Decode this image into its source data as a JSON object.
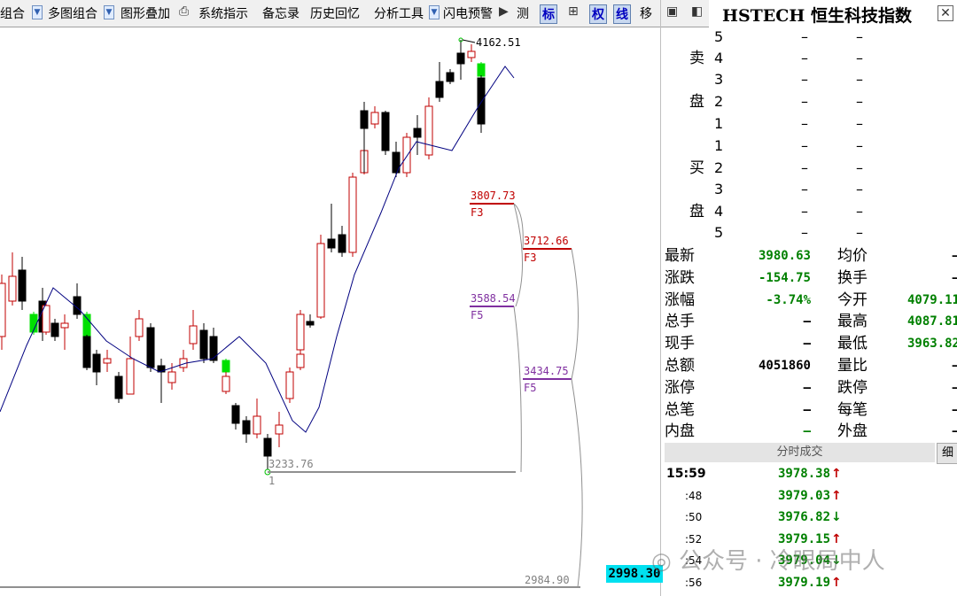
{
  "toolbar": {
    "items": [
      "组合",
      "多图组合",
      "图形叠加",
      "系统指示",
      "备忘录",
      "历史回忆",
      "分析工具",
      "闪电预警",
      "测",
      "标",
      "权",
      "线",
      "移"
    ]
  },
  "chart": {
    "high_label": "4162.51",
    "fib": [
      {
        "value": "3807.73",
        "tag": "F3"
      },
      {
        "value": "3712.66",
        "tag": "F3"
      },
      {
        "value": "3588.54",
        "tag": "F5"
      },
      {
        "value": "3434.75",
        "tag": "F5"
      },
      {
        "value": "3233.76",
        "tag": "1"
      }
    ],
    "low_label": "2984.90",
    "price_tag": "2998.30"
  },
  "quote": {
    "title": "HSTECH 恒生科技指数",
    "side_labels": [
      "卖",
      "盘",
      "买",
      "盘"
    ],
    "book": [
      {
        "level": "5",
        "price": "–",
        "volume": "–"
      },
      {
        "level": "4",
        "price": "–",
        "volume": "–"
      },
      {
        "level": "3",
        "price": "–",
        "volume": "–"
      },
      {
        "level": "2",
        "price": "–",
        "volume": "–"
      },
      {
        "level": "1",
        "price": "–",
        "volume": "–"
      },
      {
        "level": "1",
        "price": "–",
        "volume": "–"
      },
      {
        "level": "2",
        "price": "–",
        "volume": "–"
      },
      {
        "level": "3",
        "price": "–",
        "volume": "–"
      },
      {
        "level": "4",
        "price": "–",
        "volume": "–"
      },
      {
        "level": "5",
        "price": "–",
        "volume": "–"
      }
    ],
    "stats": [
      {
        "label": "最新",
        "value": "3980.63",
        "color": "#008000"
      },
      {
        "label": "均价",
        "value": "–",
        "color": "#000000"
      },
      {
        "label": "涨跌",
        "value": "-154.75",
        "color": "#008000"
      },
      {
        "label": "换手",
        "value": "–",
        "color": "#000000"
      },
      {
        "label": "涨幅",
        "value": "-3.74%",
        "color": "#008000"
      },
      {
        "label": "今开",
        "value": "4079.11",
        "color": "#008000"
      },
      {
        "label": "总手",
        "value": "–",
        "color": "#000000"
      },
      {
        "label": "最高",
        "value": "4087.81",
        "color": "#008000"
      },
      {
        "label": "现手",
        "value": "–",
        "color": "#000000"
      },
      {
        "label": "最低",
        "value": "3963.82",
        "color": "#008000"
      },
      {
        "label": "总额",
        "value": "4051860",
        "color": "#000000"
      },
      {
        "label": "量比",
        "value": "–",
        "color": "#000000"
      },
      {
        "label": "涨停",
        "value": "–",
        "color": "#000000"
      },
      {
        "label": "跌停",
        "value": "–",
        "color": "#000000"
      },
      {
        "label": "总笔",
        "value": "–",
        "color": "#000000"
      },
      {
        "label": "每笔",
        "value": "–",
        "color": "#000000"
      },
      {
        "label": "内盘",
        "value": "–",
        "color": "#008000"
      },
      {
        "label": "外盘",
        "value": "–",
        "color": "#000000"
      }
    ]
  },
  "trades": {
    "title": "分时成交",
    "detail": "细",
    "rows": [
      {
        "time": "15:59",
        "price": "3978.38",
        "arrow": "↑"
      },
      {
        "time": ":48",
        "price": "3979.03",
        "arrow": "↑"
      },
      {
        "time": ":50",
        "price": "3976.82",
        "arrow": "↓"
      },
      {
        "time": ":52",
        "price": "3979.15",
        "arrow": "↑"
      },
      {
        "time": ":54",
        "price": "3979.04",
        "arrow": "↓"
      },
      {
        "time": ":56",
        "price": "3979.19",
        "arrow": "↑"
      }
    ]
  },
  "watermark": "公众号 · 冷眼局中人"
}
